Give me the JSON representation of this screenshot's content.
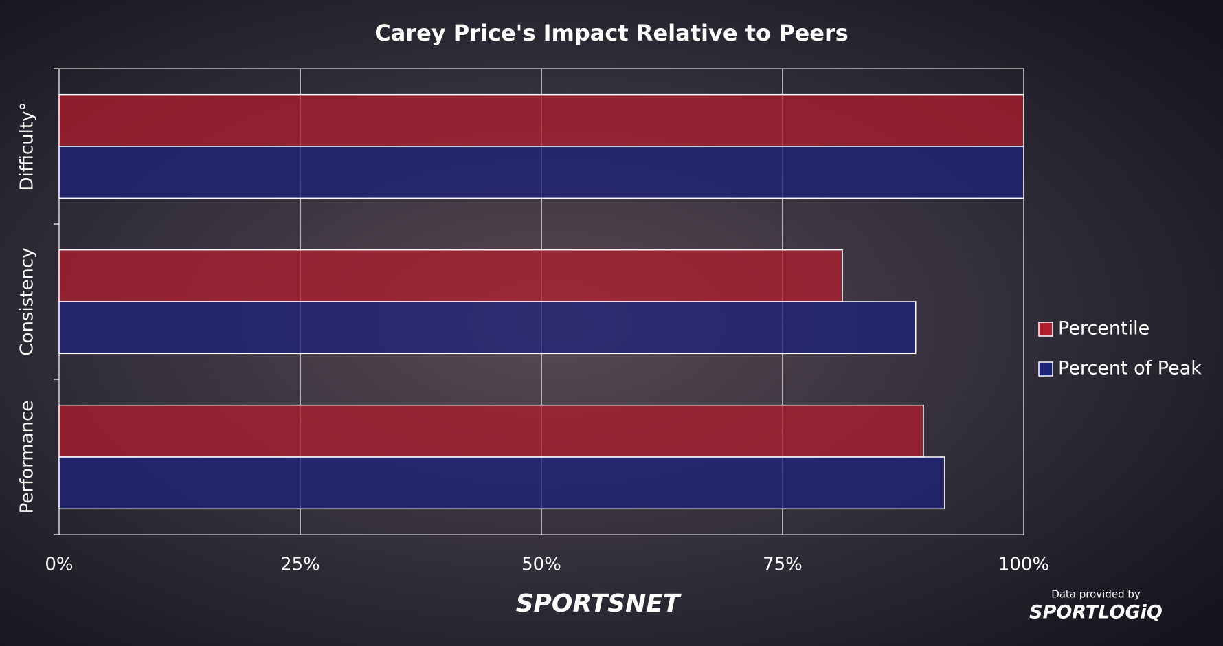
{
  "chart_data": {
    "type": "barh",
    "title": "Carey Price's Impact Relative to Peers",
    "categories": [
      "Difficulty°",
      "Consistency",
      "Performance"
    ],
    "series": [
      {
        "name": "Percentile",
        "color": "#b01e2d",
        "values": [
          100,
          81.2,
          89.6
        ]
      },
      {
        "name": "Percent of Peak",
        "color": "#1e237a",
        "values": [
          100,
          88.8,
          91.8
        ]
      }
    ],
    "xlim": [
      0,
      100
    ],
    "xticks": [
      {
        "value": 0,
        "label": "0%"
      },
      {
        "value": 25,
        "label": "25%"
      },
      {
        "value": 50,
        "label": "50%"
      },
      {
        "value": 75,
        "label": "75%"
      },
      {
        "value": 100,
        "label": "100%"
      }
    ],
    "grid": true,
    "legend": "right"
  },
  "branding": {
    "logo": "SPORTSNET",
    "credit": "Data provided by",
    "provider": "SPORTLOGiQ"
  }
}
